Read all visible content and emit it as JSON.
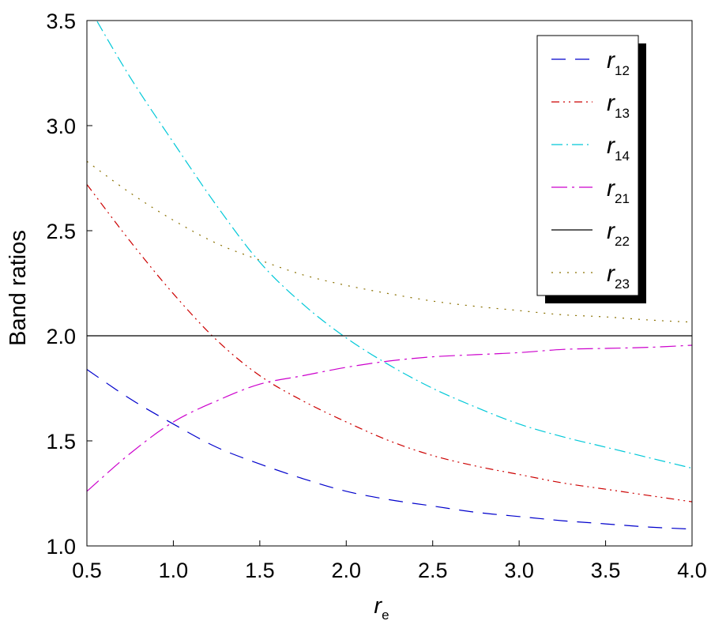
{
  "chart_data": {
    "type": "line",
    "xlabel": {
      "main": "r",
      "sub": "e"
    },
    "ylabel": "Band ratios",
    "xlim": [
      0.5,
      4.0
    ],
    "ylim": [
      1.0,
      3.5
    ],
    "xticks": [
      "0.5",
      "1.0",
      "1.5",
      "2.0",
      "2.5",
      "3.0",
      "3.5",
      "4.0"
    ],
    "yticks": [
      "1.0",
      "1.5",
      "2.0",
      "2.5",
      "3.0",
      "3.5"
    ],
    "grid": false,
    "legend_position": "top-right",
    "x": [
      0.5,
      0.75,
      1.0,
      1.25,
      1.5,
      1.75,
      2.0,
      2.25,
      2.5,
      2.75,
      3.0,
      3.25,
      3.5,
      3.75,
      4.0
    ],
    "series": [
      {
        "name": "r",
        "sub": "12",
        "color": "#0000cc",
        "dash": "long-dash",
        "values": [
          1.84,
          1.7,
          1.58,
          1.47,
          1.39,
          1.32,
          1.26,
          1.22,
          1.19,
          1.16,
          1.14,
          1.12,
          1.105,
          1.09,
          1.08
        ]
      },
      {
        "name": "r",
        "sub": "13",
        "color": "#cc0000",
        "dash": "dash-dot-dot",
        "values": [
          2.72,
          2.45,
          2.2,
          1.98,
          1.81,
          1.69,
          1.59,
          1.5,
          1.43,
          1.38,
          1.34,
          1.3,
          1.27,
          1.24,
          1.21
        ]
      },
      {
        "name": "r",
        "sub": "14",
        "color": "#00c8d8",
        "dash": "dash-dot",
        "values": [
          3.58,
          3.23,
          2.92,
          2.62,
          2.35,
          2.15,
          1.99,
          1.86,
          1.75,
          1.66,
          1.58,
          1.52,
          1.47,
          1.42,
          1.37
        ]
      },
      {
        "name": "r",
        "sub": "21",
        "color": "#cc00cc",
        "dash": "long-dash-dot",
        "values": [
          1.26,
          1.44,
          1.59,
          1.69,
          1.77,
          1.81,
          1.85,
          1.88,
          1.9,
          1.91,
          1.92,
          1.935,
          1.94,
          1.945,
          1.955
        ]
      },
      {
        "name": "r",
        "sub": "22",
        "color": "#000000",
        "dash": "solid",
        "values": [
          2.0,
          2.0,
          2.0,
          2.0,
          2.0,
          2.0,
          2.0,
          2.0,
          2.0,
          2.0,
          2.0,
          2.0,
          2.0,
          2.0,
          2.0
        ]
      },
      {
        "name": "r",
        "sub": "23",
        "color": "#8a7000",
        "dash": "dot",
        "values": [
          2.83,
          2.68,
          2.55,
          2.44,
          2.36,
          2.29,
          2.24,
          2.2,
          2.165,
          2.14,
          2.12,
          2.1,
          2.09,
          2.075,
          2.065
        ]
      }
    ]
  }
}
